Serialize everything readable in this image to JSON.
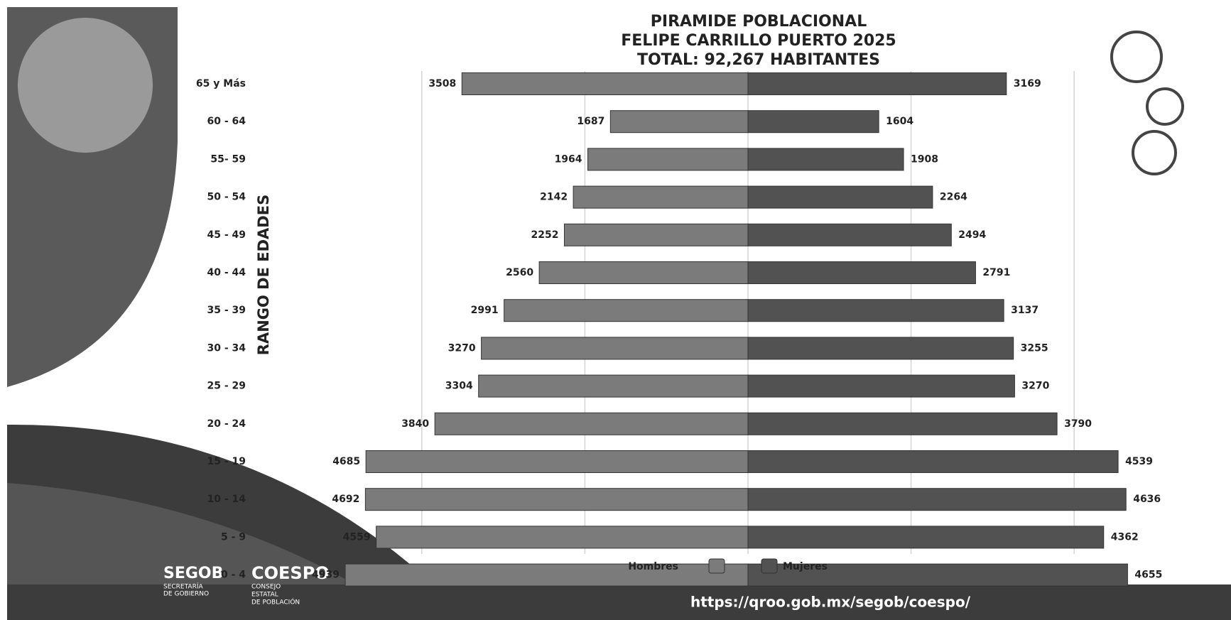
{
  "chart_data": {
    "type": "population-pyramid",
    "title": [
      "PIRAMIDE POBLACIONAL",
      "FELIPE CARRILLO PUERTO 2025",
      "TOTAL: 92,267 HABITANTES"
    ],
    "y_label": "RANGO DE EDADES",
    "categories": [
      "65 y Más",
      "60 - 64",
      "55- 59",
      "50 - 54",
      "45 - 49",
      "40 - 44",
      "35 - 39",
      "30 - 34",
      "25 - 29",
      "20 - 24",
      "15 - 19",
      "10 - 14",
      "5 - 9",
      "0 - 4"
    ],
    "series": [
      {
        "name": "Hombres",
        "color": "#7b7b7b",
        "side": "left",
        "values": [
          3508,
          1687,
          1964,
          2142,
          2252,
          2560,
          2991,
          3270,
          3304,
          3840,
          4685,
          4692,
          4559,
          4939
        ]
      },
      {
        "name": "Mujeres",
        "color": "#525252",
        "side": "right",
        "values": [
          3169,
          1604,
          1908,
          2264,
          2494,
          2791,
          3137,
          3255,
          3270,
          3790,
          4539,
          4636,
          4362,
          4655
        ]
      }
    ],
    "xlim": [
      -5000,
      5000
    ],
    "grid_x": [
      -4000,
      -2000,
      0,
      2000,
      4000
    ],
    "legend": "bottom"
  },
  "footer": {
    "segob": "SEGOB",
    "segob_sub": [
      "SECRETARÍA",
      "DE GOBIERNO"
    ],
    "coespo": "COESPO",
    "coespo_sub": [
      "CONSEJO",
      "ESTATAL",
      "DE POBLACIÓN"
    ],
    "url": "https://qroo.gob.mx/segob/coespo/"
  }
}
